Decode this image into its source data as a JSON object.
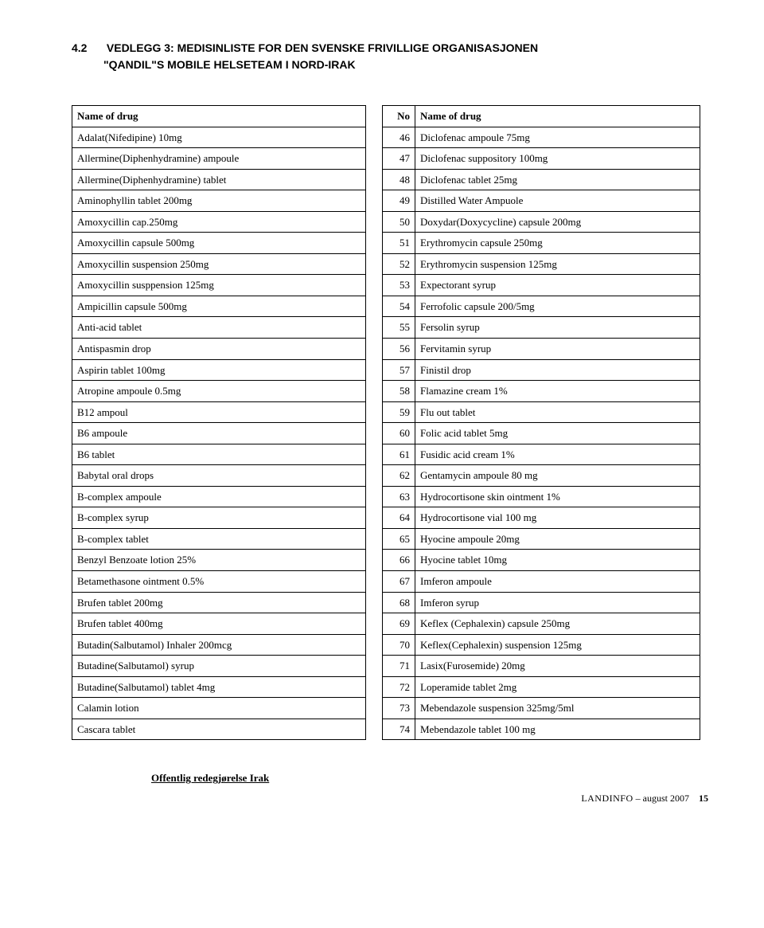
{
  "heading": {
    "number": "4.2",
    "title_l1": "VEDLEGG 3: MEDISINLISTE FOR DEN SVENSKE FRIVILLIGE ORGANISASJONEN",
    "title_l2": "\"QANDIL\"S MOBILE HELSETEAM I NORD-IRAK"
  },
  "left_header": "Name of drug",
  "right_headers": {
    "no": "No",
    "name": "Name of drug"
  },
  "left_rows": [
    "Adalat(Nifedipine) 10mg",
    "Allermine(Diphenhydramine) ampoule",
    "Allermine(Diphenhydramine) tablet",
    "Aminophyllin tablet 200mg",
    "Amoxycillin cap.250mg",
    "Amoxycillin capsule 500mg",
    "Amoxycillin suspension 250mg",
    "Amoxycillin susppension 125mg",
    "Ampicillin capsule 500mg",
    "Anti-acid tablet",
    "Antispasmin drop",
    "Aspirin tablet 100mg",
    "Atropine ampoule 0.5mg",
    "B12 ampoul",
    "B6 ampoule",
    "B6 tablet",
    "Babytal oral drops",
    "B-complex ampoule",
    "B-complex syrup",
    "B-complex tablet",
    "Benzyl Benzoate lotion 25%",
    "Betamethasone ointment 0.5%",
    "Brufen tablet 200mg",
    "Brufen tablet 400mg",
    "Butadin(Salbutamol) Inhaler 200mcg",
    "Butadine(Salbutamol) syrup",
    "Butadine(Salbutamol) tablet 4mg",
    "Calamin lotion",
    "Cascara tablet"
  ],
  "right_rows": [
    {
      "no": 46,
      "name": "Diclofenac ampoule 75mg"
    },
    {
      "no": 47,
      "name": "Diclofenac suppository 100mg"
    },
    {
      "no": 48,
      "name": "Diclofenac tablet 25mg"
    },
    {
      "no": 49,
      "name": "Distilled Water Ampuole"
    },
    {
      "no": 50,
      "name": "Doxydar(Doxycycline) capsule 200mg"
    },
    {
      "no": 51,
      "name": "Erythromycin capsule 250mg"
    },
    {
      "no": 52,
      "name": "Erythromycin suspension 125mg"
    },
    {
      "no": 53,
      "name": "Expectorant syrup"
    },
    {
      "no": 54,
      "name": "Ferrofolic capsule 200/5mg"
    },
    {
      "no": 55,
      "name": "Fersolin syrup"
    },
    {
      "no": 56,
      "name": "Fervitamin syrup"
    },
    {
      "no": 57,
      "name": "Finistil drop"
    },
    {
      "no": 58,
      "name": "Flamazine cream 1%"
    },
    {
      "no": 59,
      "name": "Flu out tablet"
    },
    {
      "no": 60,
      "name": "Folic acid tablet 5mg"
    },
    {
      "no": 61,
      "name": "Fusidic acid cream 1%"
    },
    {
      "no": 62,
      "name": "Gentamycin ampoule 80 mg"
    },
    {
      "no": 63,
      "name": "Hydrocortisone skin ointment 1%"
    },
    {
      "no": 64,
      "name": "Hydrocortisone vial 100 mg"
    },
    {
      "no": 65,
      "name": "Hyocine ampoule 20mg"
    },
    {
      "no": 66,
      "name": "Hyocine tablet 10mg"
    },
    {
      "no": 67,
      "name": "Imferon ampoule"
    },
    {
      "no": 68,
      "name": "Imferon syrup"
    },
    {
      "no": 69,
      "name": "Keflex (Cephalexin) capsule 250mg"
    },
    {
      "no": 70,
      "name": "Keflex(Cephalexin) suspension 125mg"
    },
    {
      "no": 71,
      "name": "Lasix(Furosemide) 20mg"
    },
    {
      "no": 72,
      "name": "Loperamide tablet 2mg"
    },
    {
      "no": 73,
      "name": "Mebendazole suspension 325mg/5ml"
    },
    {
      "no": 74,
      "name": "Mebendazole tablet 100 mg"
    }
  ],
  "footer": {
    "link": "Offentlig redegjørelse Irak",
    "label": "LANDINFO",
    "date": " – august 2007",
    "page": "15"
  }
}
